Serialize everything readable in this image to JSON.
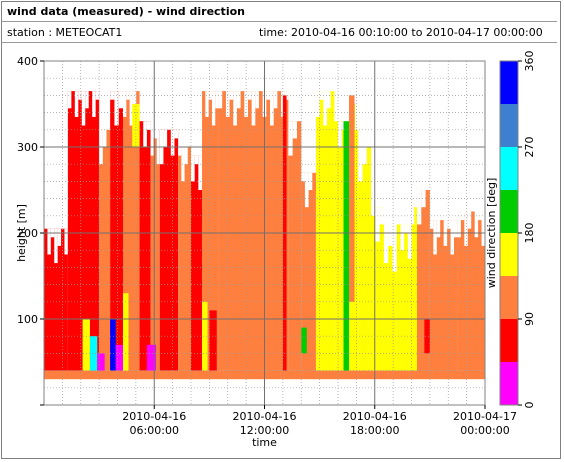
{
  "header": {
    "title": "wind data (measured) - wind direction",
    "station": "station : METEOCAT1",
    "time_range": "time: 2010-04-16 00:10:00 to 2010-04-17 00:00:00"
  },
  "colors": {
    "bin_0_45": "#ff00ff",
    "bin_45_90": "#ff0000",
    "bin_90_135": "#ff7f3f",
    "bin_135_180": "#ffff00",
    "bin_180_225": "#00cc00",
    "bin_225_270": "#00ffff",
    "bin_270_315": "#3f7fcf",
    "bin_315_360": "#0000ff"
  },
  "chart_data": {
    "type": "heatmap",
    "title": "",
    "xlabel": "time",
    "ylabel": "height [m]",
    "colorbar_label": "wind direction [deg]",
    "xlim_hours": [
      0,
      24
    ],
    "ylim": [
      0,
      400
    ],
    "x_ticks": [
      {
        "hour": 6,
        "line1": "2010-04-16",
        "line2": "06:00:00"
      },
      {
        "hour": 12,
        "line1": "2010-04-16",
        "line2": "12:00:00"
      },
      {
        "hour": 18,
        "line1": "2010-04-16",
        "line2": "18:00:00"
      },
      {
        "hour": 24,
        "line1": "2010-04-17",
        "line2": "00:00:00"
      }
    ],
    "y_ticks": [
      100,
      200,
      300,
      400
    ],
    "colorbar_ticks": [
      0,
      90,
      180,
      270,
      360
    ],
    "colorbar_bins": [
      {
        "from": 0,
        "to": 45,
        "color": "#ff00ff"
      },
      {
        "from": 45,
        "to": 90,
        "color": "#ff0000"
      },
      {
        "from": 90,
        "to": 135,
        "color": "#ff7f3f"
      },
      {
        "from": 135,
        "to": 180,
        "color": "#ffff00"
      },
      {
        "from": 180,
        "to": 225,
        "color": "#00cc00"
      },
      {
        "from": 225,
        "to": 270,
        "color": "#00ffff"
      },
      {
        "from": 270,
        "to": 315,
        "color": "#3f7fcf"
      },
      {
        "from": 315,
        "to": 360,
        "color": "#0000ff"
      }
    ],
    "cell_min_height": 40,
    "cell_step_height": 20,
    "segments": [
      {
        "t0": 0.0,
        "t1": 1.3,
        "direction": 67,
        "top": 205
      },
      {
        "t0": 1.3,
        "t1": 3.0,
        "direction": 67,
        "top": 365
      },
      {
        "t0": 3.0,
        "t1": 3.6,
        "direction": 112,
        "top": 320
      },
      {
        "t0": 3.6,
        "t1": 4.3,
        "direction": 67,
        "top": 365
      },
      {
        "t0": 4.3,
        "t1": 5.2,
        "direction": 112,
        "top": 365
      },
      {
        "t0": 5.2,
        "t1": 5.8,
        "direction": 67,
        "top": 330
      },
      {
        "t0": 5.8,
        "t1": 6.3,
        "direction": 112,
        "top": 310
      },
      {
        "t0": 6.3,
        "t1": 7.3,
        "direction": 67,
        "top": 320
      },
      {
        "t0": 7.3,
        "t1": 8.0,
        "direction": 112,
        "top": 300
      },
      {
        "t0": 8.0,
        "t1": 8.6,
        "direction": 67,
        "top": 290
      },
      {
        "t0": 8.6,
        "t1": 9.5,
        "direction": 112,
        "top": 365
      },
      {
        "t0": 9.5,
        "t1": 13.3,
        "direction": 112,
        "top": 365
      },
      {
        "t0": 13.3,
        "t1": 14.0,
        "direction": 112,
        "top": 330
      },
      {
        "t0": 14.0,
        "t1": 14.8,
        "direction": 112,
        "top": 270
      },
      {
        "t0": 14.8,
        "t1": 15.8,
        "direction": 157,
        "top": 365
      },
      {
        "t0": 15.8,
        "t1": 16.6,
        "direction": 157,
        "top": 330
      },
      {
        "t0": 16.6,
        "t1": 17.1,
        "direction": 157,
        "top": 350
      },
      {
        "t0": 17.1,
        "t1": 17.8,
        "direction": 157,
        "top": 300
      },
      {
        "t0": 17.8,
        "t1": 18.5,
        "direction": 157,
        "top": 230
      },
      {
        "t0": 18.5,
        "t1": 19.2,
        "direction": 157,
        "top": 195
      },
      {
        "t0": 19.2,
        "t1": 20.0,
        "direction": 157,
        "top": 210
      },
      {
        "t0": 20.0,
        "t1": 20.3,
        "direction": 157,
        "top": 230
      },
      {
        "t0": 20.3,
        "t1": 21.0,
        "direction": 112,
        "top": 250
      },
      {
        "t0": 21.0,
        "t1": 22.5,
        "direction": 112,
        "top": 215
      },
      {
        "t0": 22.5,
        "t1": 24.0,
        "direction": 112,
        "top": 225
      }
    ],
    "patches": [
      {
        "t0": 0.0,
        "t1": 24.0,
        "direction": 112,
        "h0": 30,
        "h1": 40
      },
      {
        "t0": 2.1,
        "t1": 2.5,
        "direction": 135,
        "h0": 40,
        "h1": 100
      },
      {
        "t0": 2.5,
        "t1": 2.9,
        "direction": 247,
        "h0": 40,
        "h1": 80
      },
      {
        "t0": 2.9,
        "t1": 3.3,
        "direction": 22,
        "h0": 40,
        "h1": 60
      },
      {
        "t0": 3.6,
        "t1": 3.9,
        "direction": 337,
        "h0": 40,
        "h1": 100
      },
      {
        "t0": 3.9,
        "t1": 4.3,
        "direction": 22,
        "h0": 40,
        "h1": 70
      },
      {
        "t0": 4.3,
        "t1": 4.6,
        "direction": 157,
        "h0": 40,
        "h1": 130
      },
      {
        "t0": 5.6,
        "t1": 6.1,
        "direction": 22,
        "h0": 40,
        "h1": 70
      },
      {
        "t0": 8.6,
        "t1": 8.9,
        "direction": 157,
        "h0": 40,
        "h1": 120
      },
      {
        "t0": 4.8,
        "t1": 5.2,
        "direction": 157,
        "h0": 300,
        "h1": 350
      },
      {
        "t0": 9.0,
        "t1": 9.4,
        "direction": 67,
        "h0": 40,
        "h1": 110
      },
      {
        "t0": 13.0,
        "t1": 13.2,
        "direction": 67,
        "h0": 40,
        "h1": 360
      },
      {
        "t0": 16.3,
        "t1": 16.6,
        "direction": 202,
        "h0": 40,
        "h1": 330
      },
      {
        "t0": 14.0,
        "t1": 14.3,
        "direction": 202,
        "h0": 60,
        "h1": 90
      },
      {
        "t0": 16.6,
        "t1": 16.9,
        "direction": 112,
        "h0": 120,
        "h1": 360
      },
      {
        "t0": 20.7,
        "t1": 21.0,
        "direction": 67,
        "h0": 60,
        "h1": 100
      }
    ]
  }
}
